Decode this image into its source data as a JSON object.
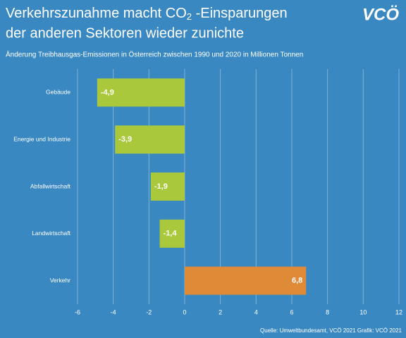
{
  "chart_data": {
    "type": "hbar",
    "title": [
      "Verkehrszunahme macht CO",
      "2",
      " -Einsparungen",
      "der anderen Sektoren wieder zunichte"
    ],
    "logo": "VCÖ",
    "subtitle": "Änderung Treibhausgas-Emissionen in Österreich zwischen 1990 und 2020 in Millionen Tonnen",
    "source": "Quelle: Umweltbundesamt, VCÖ 2021 Grafik: VCÖ 2021",
    "categories": [
      "Gebäude",
      "Energie und Industrie",
      "Abfallwirtschaft",
      "Landwirtschaft",
      "Verkehr"
    ],
    "values": [
      -4.9,
      -3.9,
      -1.9,
      -1.4,
      6.8
    ],
    "value_labels": [
      "-4,9",
      "-3,9",
      "-1,9",
      "-1,4",
      "6,8"
    ],
    "colors": [
      "#a9c83b",
      "#a9c83b",
      "#a9c83b",
      "#a9c83b",
      "#df8a37"
    ],
    "xlim": [
      -6,
      12
    ],
    "xticks": [
      -6,
      -4,
      -2,
      0,
      2,
      4,
      6,
      8,
      10,
      12
    ],
    "grid": true
  }
}
